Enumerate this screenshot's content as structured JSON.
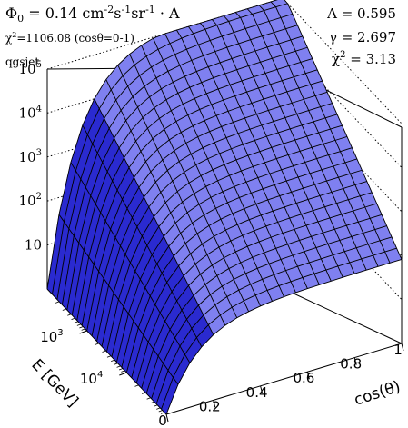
{
  "chart_data": {
    "type": "surface3d",
    "title": "",
    "formula": {
      "lead": "Φ",
      "lead_sub": "0",
      "value": " = 0.14 cm",
      "exp1": "-2",
      "mid1": "s",
      "exp2": "-1",
      "mid2": "sr",
      "exp3": "-1",
      "tail": " · A"
    },
    "chi2_total": {
      "symbol": "χ",
      "sup": "2",
      "text": "=1106.08 (cosθ=0-1)"
    },
    "model_label": "qgsjet",
    "fit_params": {
      "A": {
        "label": "A = 0.595",
        "value": 0.595
      },
      "gamma": {
        "label": "γ = 2.697",
        "value": 2.697
      },
      "chi2": {
        "symbol": "χ",
        "sup": "2",
        "text": " =  3.13",
        "value": 3.13
      }
    },
    "x_axis": {
      "label": "cos(θ)",
      "range": [
        0,
        1
      ],
      "ticks": [
        {
          "value": 0,
          "label": "0"
        },
        {
          "value": 0.2,
          "label": "0.2"
        },
        {
          "value": 0.4,
          "label": "0.4"
        },
        {
          "value": 0.6,
          "label": "0.6"
        },
        {
          "value": 0.8,
          "label": "0.8"
        },
        {
          "value": 1,
          "label": "1"
        }
      ]
    },
    "y_axis": {
      "label": "E [GeV]",
      "scale": "log",
      "range": [
        100,
        100000
      ],
      "ticks": [
        {
          "value": 1000,
          "base": "10",
          "exp": "3"
        },
        {
          "value": 10000,
          "base": "10",
          "exp": "4"
        }
      ]
    },
    "z_axis": {
      "label": "",
      "scale": "log",
      "range": [
        1,
        100000
      ],
      "ticks": [
        {
          "value": 10,
          "base": "10",
          "exp": ""
        },
        {
          "value": 100,
          "base": "10",
          "exp": "2"
        },
        {
          "value": 1000,
          "base": "10",
          "exp": "3"
        },
        {
          "value": 10000,
          "base": "10",
          "exp": "4"
        },
        {
          "value": 100000,
          "base": "10",
          "exp": "5"
        }
      ],
      "gridlines": "dotted"
    },
    "fit_surface": {
      "grid_cos_theta": 20,
      "grid_energy": 24,
      "model": "N = A * phi0 * E^-gamma, suppressed toward cos(theta) -> 0"
    },
    "colors": {
      "surface_fill": "#7f80f0",
      "surface_dark": "#2a2ad0",
      "surface_light": "#c8c8ff",
      "mesh": "#000000"
    }
  }
}
